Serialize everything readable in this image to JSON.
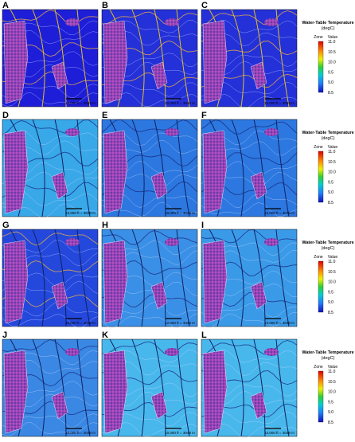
{
  "panels": [
    {
      "label": "A"
    },
    {
      "label": "B"
    },
    {
      "label": "C"
    },
    {
      "label": "D"
    },
    {
      "label": "E"
    },
    {
      "label": "F"
    },
    {
      "label": "G"
    },
    {
      "label": "H"
    },
    {
      "label": "I"
    },
    {
      "label": "J"
    },
    {
      "label": "K"
    },
    {
      "label": "L"
    }
  ],
  "scale_bar": "10,000 ft = 3048 m",
  "legend": {
    "title": "Water-Table Temperature",
    "unit": "(degC)",
    "zone": "Zone",
    "value": "Value",
    "ticks": [
      "11.0",
      "10.5",
      "10.0",
      "9.5",
      "9.0",
      "8.5"
    ]
  }
}
